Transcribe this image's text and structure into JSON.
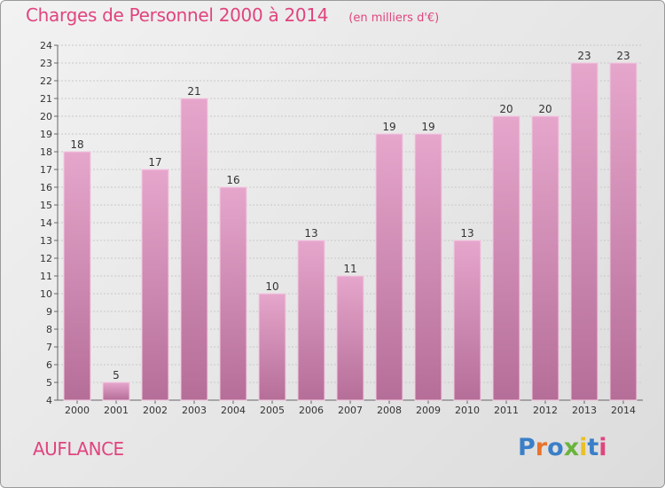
{
  "header": {
    "title": "Charges de Personnel 2000 à 2014",
    "subtitle": "(en milliers d'€)"
  },
  "footer": {
    "commune": "AUFLANCE",
    "logo": {
      "text": "Proxiti",
      "letter_colors": [
        "#3a7fc8",
        "#e8732a",
        "#3a7fc8",
        "#6ab33e",
        "#e8c12a",
        "#3a7fc8",
        "#e0447e"
      ]
    }
  },
  "colors": {
    "bar_top": "#e6a6cc",
    "bar_bottom": "#b56e98",
    "accent": "#e0447e"
  },
  "chart_data": {
    "type": "bar",
    "categories": [
      "2000",
      "2001",
      "2002",
      "2003",
      "2004",
      "2005",
      "2006",
      "2007",
      "2008",
      "2009",
      "2010",
      "2011",
      "2012",
      "2013",
      "2014"
    ],
    "values": [
      18,
      5,
      17,
      21,
      16,
      10,
      13,
      11,
      19,
      19,
      13,
      20,
      20,
      23,
      23
    ],
    "title": "Charges de Personnel 2000 à 2014",
    "ylim": [
      4,
      24
    ],
    "yticks": [
      4,
      5,
      6,
      7,
      8,
      9,
      10,
      11,
      12,
      13,
      14,
      15,
      16,
      17,
      18,
      19,
      20,
      21,
      22,
      23,
      24
    ],
    "grid": true
  }
}
